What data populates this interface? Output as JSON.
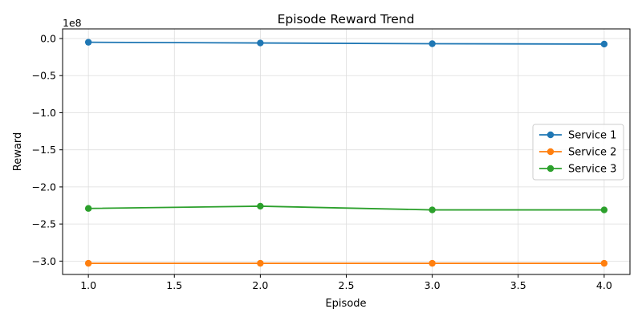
{
  "chart_data": {
    "type": "line",
    "title": "Episode Reward Trend",
    "xlabel": "Episode",
    "ylabel": "Reward",
    "y_offset_label": "1e8",
    "xlim": [
      0.85,
      4.15
    ],
    "ylim": [
      -3.18,
      0.13
    ],
    "x_ticks": [
      1.0,
      1.5,
      2.0,
      2.5,
      3.0,
      3.5,
      4.0
    ],
    "x_tick_labels": [
      "1.0",
      "1.5",
      "2.0",
      "2.5",
      "3.0",
      "3.5",
      "4.0"
    ],
    "y_ticks": [
      0.0,
      -0.5,
      -1.0,
      -1.5,
      -2.0,
      -2.5,
      -3.0
    ],
    "y_tick_labels": [
      "0.0",
      "−0.5",
      "−1.0",
      "−1.5",
      "−2.0",
      "−2.5",
      "−3.0"
    ],
    "grid": true,
    "legend_position": "right",
    "x": [
      1,
      2,
      3,
      4
    ],
    "series": [
      {
        "name": "Service 1",
        "color": "#1f77b4",
        "values": [
          -0.05,
          -0.06,
          -0.07,
          -0.075
        ]
      },
      {
        "name": "Service 2",
        "color": "#ff7f0e",
        "values": [
          -3.03,
          -3.03,
          -3.03,
          -3.03
        ]
      },
      {
        "name": "Service 3",
        "color": "#2ca02c",
        "values": [
          -2.29,
          -2.26,
          -2.31,
          -2.31
        ]
      }
    ]
  }
}
